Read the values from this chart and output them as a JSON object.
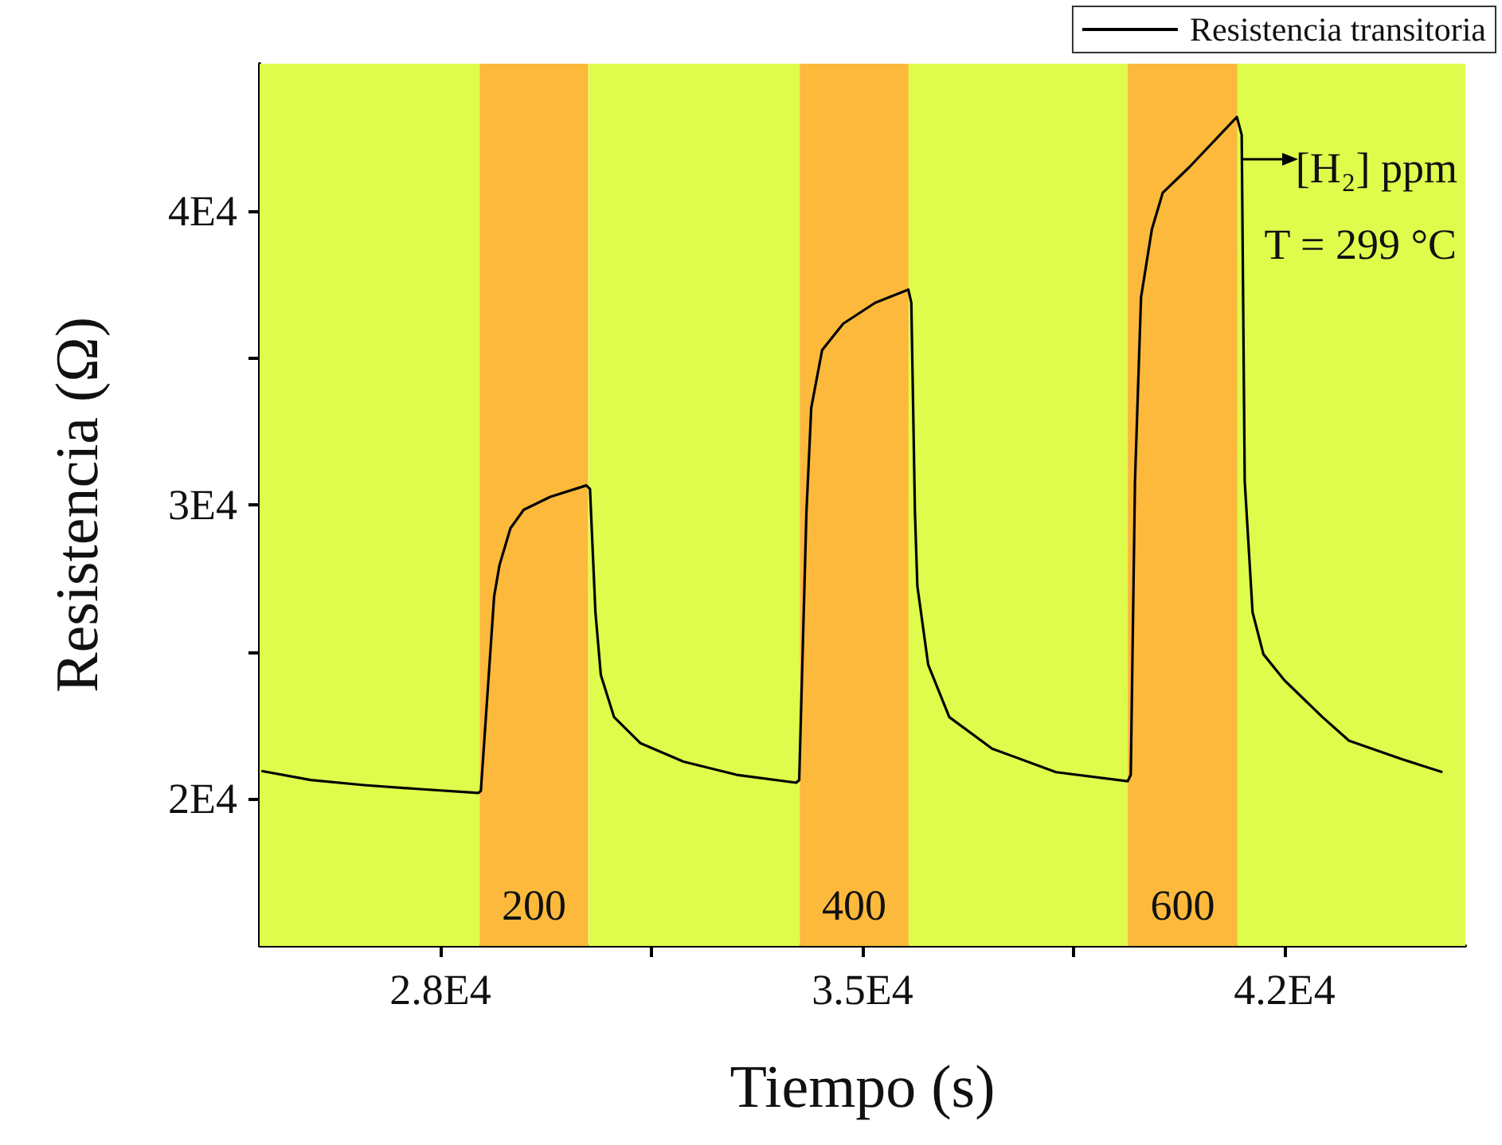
{
  "chart_data": {
    "type": "line",
    "xlabel": "Tiempo (s)",
    "ylabel": "Resistencia (Ω)",
    "x": [
      25030,
      25850,
      26730,
      27610,
      28630,
      28670,
      28890,
      28980,
      29160,
      29380,
      29820,
      30420,
      30480,
      30570,
      30660,
      30880,
      31320,
      32030,
      32910,
      33900,
      33950,
      34070,
      34150,
      34330,
      34680,
      35210,
      35760,
      35810,
      35870,
      35910,
      36090,
      36440,
      37150,
      38210,
      39400,
      39450,
      39520,
      39620,
      39800,
      39980,
      40420,
      41210,
      41290,
      41340,
      41470,
      41650,
      42000,
      42630,
      43070,
      43950,
      44620
    ],
    "series": [
      {
        "name": "Resistencia transitoria",
        "color": "#000000",
        "values": [
          20950,
          20640,
          20470,
          20340,
          20200,
          20280,
          26890,
          27960,
          29200,
          29830,
          30270,
          30660,
          30540,
          26350,
          24210,
          22780,
          21890,
          21270,
          20820,
          20550,
          20640,
          29740,
          33300,
          35260,
          36160,
          36870,
          37320,
          36870,
          29740,
          27240,
          24560,
          22780,
          21710,
          20910,
          20600,
          20820,
          30810,
          37050,
          39370,
          40610,
          41480,
          43190,
          42580,
          30810,
          26350,
          24920,
          24030,
          22780,
          21980,
          21350,
          20910
        ]
      }
    ],
    "xlim": [
      25000,
      45000
    ],
    "xticks": [
      {
        "value": 28000,
        "label": "2.8E4"
      },
      {
        "value": 31500,
        "label": null
      },
      {
        "value": 35000,
        "label": "3.5E4"
      },
      {
        "value": 38500,
        "label": null
      },
      {
        "value": 42000,
        "label": "4.2E4"
      }
    ],
    "ylim": [
      15000,
      45000
    ],
    "yticks": [
      {
        "value": 20000,
        "label": "2E4"
      },
      {
        "value": 25000,
        "label": null
      },
      {
        "value": 30000,
        "label": "3E4"
      },
      {
        "value": 35000,
        "label": null
      },
      {
        "value": 40000,
        "label": "4E4"
      }
    ],
    "bands": [
      {
        "axis": "x",
        "from": 25000,
        "to": 28650,
        "label": null,
        "color": "#dffc4c"
      },
      {
        "axis": "x",
        "from": 28650,
        "to": 30450,
        "label": "200",
        "color": "#fcb93c"
      },
      {
        "axis": "x",
        "from": 30450,
        "to": 33960,
        "label": null,
        "color": "#dffc4c"
      },
      {
        "axis": "x",
        "from": 33960,
        "to": 35765,
        "label": "400",
        "color": "#fcb93c"
      },
      {
        "axis": "x",
        "from": 35765,
        "to": 39400,
        "label": null,
        "color": "#dffc4c"
      },
      {
        "axis": "x",
        "from": 39400,
        "to": 41220,
        "label": "600",
        "color": "#fcb93c"
      },
      {
        "axis": "x",
        "from": 41220,
        "to": 45000,
        "label": null,
        "color": "#dffc4c"
      }
    ],
    "annotations": [
      "[H₂] ppm",
      "T = 299 °C"
    ],
    "legend": "top right",
    "marker": "none",
    "line_style": "solid",
    "grid": false
  }
}
